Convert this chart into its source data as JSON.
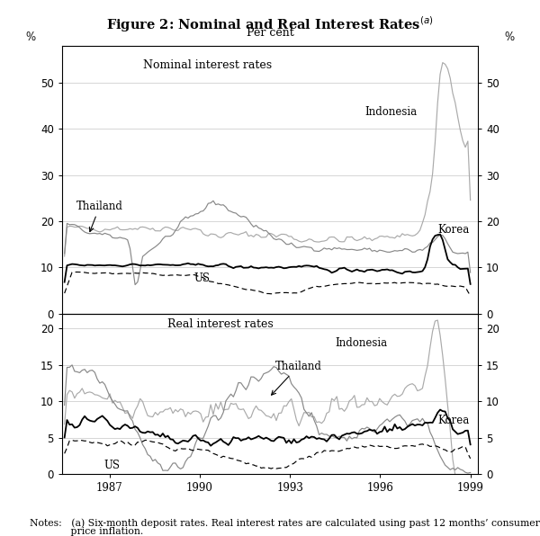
{
  "title": "Figure 2: Nominal and Real Interest Rates",
  "title_superscript": "(a)",
  "subtitle": "Per cent",
  "notes_line1": "Notes:   (a) Six-month deposit rates. Real interest rates are calculated using past 12 months’ consumer",
  "notes_line2": "             price inflation.",
  "top_panel_label": "Nominal interest rates",
  "bottom_panel_label": "Real interest rates",
  "x_start_year": 1985.42,
  "x_end_year": 1999.25,
  "x_ticks": [
    1987,
    1990,
    1993,
    1996,
    1999
  ],
  "nominal_ylim": [
    0,
    58
  ],
  "nominal_yticks": [
    0,
    10,
    20,
    30,
    40,
    50
  ],
  "real_ylim": [
    0,
    22
  ],
  "real_yticks": [
    0,
    5,
    10,
    15,
    20
  ],
  "bg_color": "#ffffff",
  "grid_color": "#d0d0d0",
  "line_color_indonesia": "#aaaaaa",
  "line_color_thailand": "#888888",
  "line_color_korea": "#000000",
  "line_color_us": "#000000",
  "lw_thin": 0.85,
  "lw_thick": 1.3,
  "anno_fontsize": 8.5,
  "panel_label_fontsize": 9,
  "tick_fontsize": 8.5
}
